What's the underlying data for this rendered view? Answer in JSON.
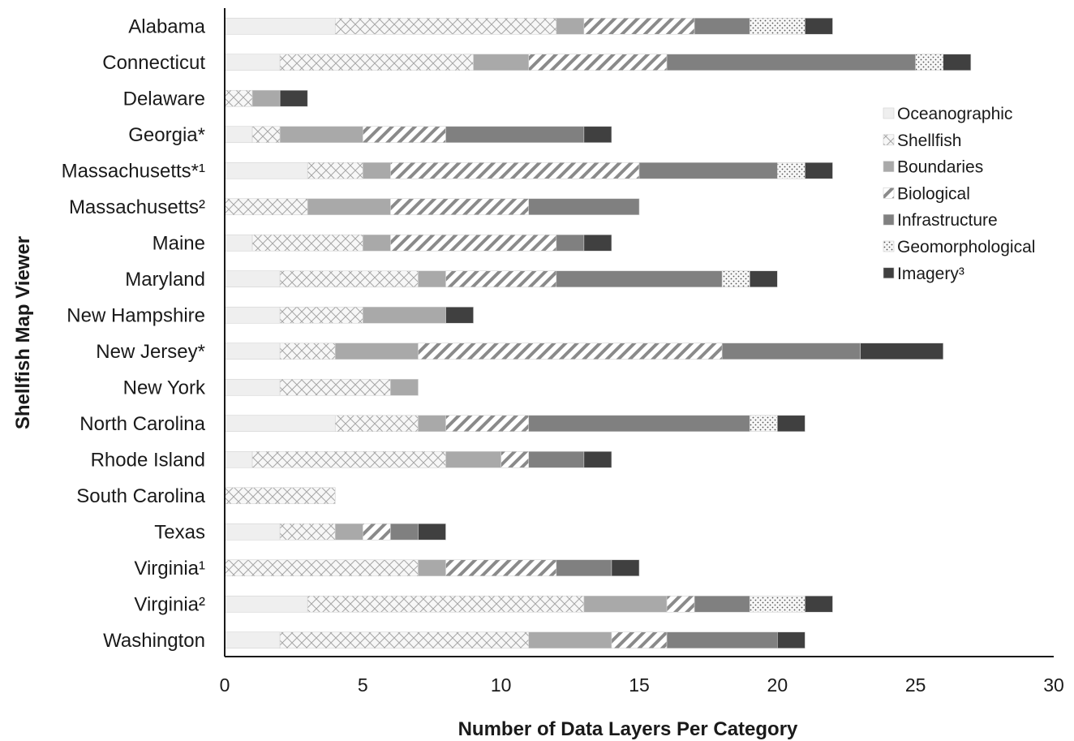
{
  "chart_data": {
    "type": "bar",
    "orientation": "horizontal",
    "stacked": true,
    "title": "",
    "xlabel": "Number of Data Layers Per Category",
    "ylabel": "Shellfish Map Viewer",
    "xlim": [
      0,
      30
    ],
    "xticks": [
      0,
      5,
      10,
      15,
      20,
      25,
      30
    ],
    "grid": false,
    "legend_position": "right",
    "categories": [
      "Alabama",
      "Connecticut",
      "Delaware",
      "Georgia*",
      "Massachusetts*¹",
      "Massachusetts²",
      "Maine",
      "Maryland",
      "New Hampshire",
      "New Jersey*",
      "New York",
      "North Carolina",
      "Rhode Island",
      "South Carolina",
      "Texas",
      "Virginia¹",
      "Virginia²",
      "Washington"
    ],
    "series": [
      {
        "name": "Oceanographic",
        "pattern": "solid",
        "color": "#efefef",
        "values": [
          4,
          2,
          0,
          1,
          3,
          0,
          1,
          2,
          2,
          2,
          2,
          4,
          1,
          0,
          2,
          0,
          3,
          2
        ]
      },
      {
        "name": "Shellfish",
        "pattern": "crosshatch",
        "color": "#f4f4f4",
        "values": [
          8,
          7,
          1,
          1,
          2,
          3,
          4,
          5,
          3,
          2,
          4,
          3,
          7,
          4,
          2,
          7,
          10,
          9
        ]
      },
      {
        "name": "Boundaries",
        "pattern": "solid",
        "color": "#a9a9a9",
        "values": [
          1,
          2,
          1,
          3,
          1,
          3,
          1,
          1,
          3,
          3,
          1,
          1,
          2,
          0,
          1,
          1,
          3,
          3
        ]
      },
      {
        "name": "Biological",
        "pattern": "diagonal",
        "color": "#ffffff",
        "values": [
          4,
          5,
          0,
          3,
          9,
          5,
          6,
          4,
          0,
          11,
          0,
          3,
          1,
          0,
          1,
          4,
          1,
          2
        ]
      },
      {
        "name": "Infrastructure",
        "pattern": "solid",
        "color": "#808080",
        "values": [
          2,
          9,
          0,
          5,
          5,
          4,
          1,
          6,
          0,
          5,
          0,
          8,
          2,
          0,
          1,
          2,
          2,
          4
        ]
      },
      {
        "name": "Geomorphological",
        "pattern": "dots",
        "color": "#f5f5f5",
        "values": [
          2,
          1,
          0,
          0,
          1,
          0,
          0,
          1,
          0,
          0,
          0,
          1,
          0,
          0,
          0,
          0,
          2,
          0
        ]
      },
      {
        "name": "Imagery³",
        "pattern": "solid",
        "color": "#404040",
        "values": [
          1,
          1,
          1,
          1,
          1,
          0,
          1,
          1,
          1,
          3,
          0,
          1,
          1,
          0,
          1,
          1,
          1,
          1
        ]
      }
    ]
  }
}
